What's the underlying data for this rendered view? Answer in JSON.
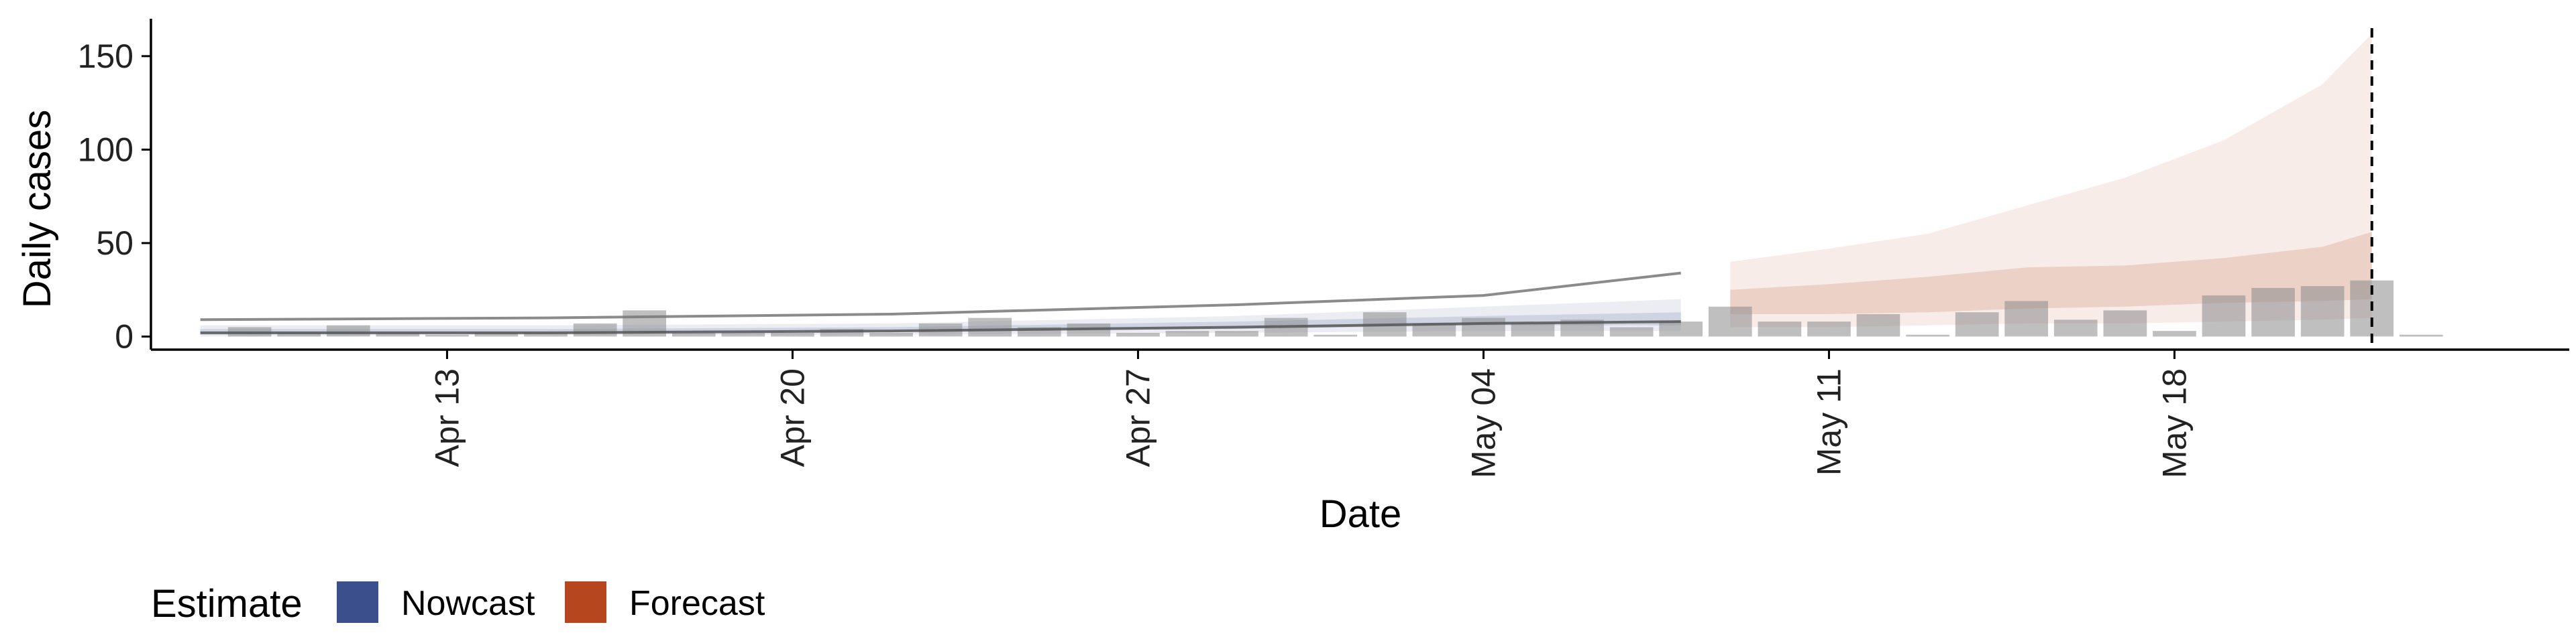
{
  "chart_data": {
    "type": "bar",
    "xlabel": "Date",
    "ylabel": "Daily cases",
    "xlim": [
      "2020-04-07",
      "2020-05-26"
    ],
    "ylim": [
      -7,
      170
    ],
    "y_ticks": [
      0,
      50,
      100,
      150
    ],
    "x_ticks": [
      {
        "date": "2020-04-13",
        "label": "Apr 13"
      },
      {
        "date": "2020-04-20",
        "label": "Apr 20"
      },
      {
        "date": "2020-04-27",
        "label": "Apr 27"
      },
      {
        "date": "2020-05-04",
        "label": "May 04"
      },
      {
        "date": "2020-05-11",
        "label": "May 11"
      },
      {
        "date": "2020-05-18",
        "label": "May 18"
      }
    ],
    "observed_cases": {
      "dates": [
        "2020-04-09",
        "2020-04-10",
        "2020-04-11",
        "2020-04-12",
        "2020-04-13",
        "2020-04-14",
        "2020-04-15",
        "2020-04-16",
        "2020-04-17",
        "2020-04-18",
        "2020-04-19",
        "2020-04-20",
        "2020-04-21",
        "2020-04-22",
        "2020-04-23",
        "2020-04-24",
        "2020-04-25",
        "2020-04-26",
        "2020-04-27",
        "2020-04-28",
        "2020-04-29",
        "2020-04-30",
        "2020-05-01",
        "2020-05-02",
        "2020-05-03",
        "2020-05-04",
        "2020-05-05",
        "2020-05-06",
        "2020-05-07",
        "2020-05-08",
        "2020-05-09",
        "2020-05-10",
        "2020-05-11",
        "2020-05-12",
        "2020-05-13",
        "2020-05-14",
        "2020-05-15",
        "2020-05-16",
        "2020-05-17",
        "2020-05-18",
        "2020-05-19",
        "2020-05-20",
        "2020-05-21",
        "2020-05-22",
        "2020-05-23"
      ],
      "values": [
        5,
        2,
        6,
        2,
        1,
        2,
        2,
        7,
        14,
        2,
        2,
        2,
        4,
        2,
        7,
        10,
        5,
        7,
        2,
        3,
        3,
        10,
        1,
        13,
        7,
        10,
        7,
        9,
        5,
        8,
        16,
        8,
        8,
        12,
        1,
        13,
        19,
        9,
        14,
        3,
        22,
        26,
        27,
        30,
        1
      ]
    },
    "dashed_line_date": "2020-05-22",
    "series": [
      {
        "name": "Nowcast",
        "color": "#3a4f8b",
        "dates": [
          "2020-04-08",
          "2020-04-15",
          "2020-04-22",
          "2020-04-29",
          "2020-05-04",
          "2020-05-08"
        ],
        "median": [
          2,
          2,
          3,
          5,
          7,
          8
        ],
        "inner_lower": [
          1,
          2,
          3,
          4,
          6,
          6
        ],
        "inner_upper": [
          4,
          4,
          5,
          8,
          11,
          13
        ],
        "outer_lower": [
          0,
          1,
          1,
          2,
          3,
          3
        ],
        "outer_upper": [
          6,
          6,
          7,
          11,
          16,
          20
        ],
        "line_upper": [
          9,
          10,
          12,
          17,
          22,
          34
        ]
      },
      {
        "name": "Forecast",
        "color": "#b5461d",
        "dates": [
          "2020-05-09",
          "2020-05-11",
          "2020-05-13",
          "2020-05-15",
          "2020-05-17",
          "2020-05-19",
          "2020-05-21",
          "2020-05-22"
        ],
        "inner_lower": [
          12,
          12,
          13,
          15,
          16,
          18,
          19,
          20
        ],
        "inner_upper": [
          25,
          28,
          32,
          37,
          38,
          42,
          48,
          56
        ],
        "outer_lower": [
          5,
          5,
          6,
          7,
          7,
          8,
          9,
          10
        ],
        "outer_upper": [
          40,
          47,
          55,
          70,
          85,
          105,
          135,
          162
        ]
      }
    ]
  },
  "legend": {
    "title": "Estimate",
    "items": [
      {
        "label": "Nowcast",
        "color": "#3a4f8b"
      },
      {
        "label": "Forecast",
        "color": "#b5461d"
      }
    ]
  }
}
